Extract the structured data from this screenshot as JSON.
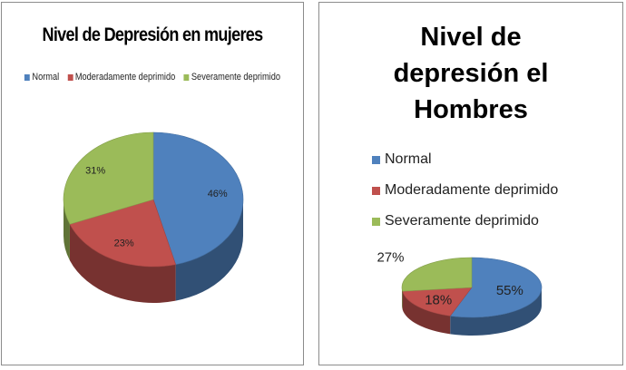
{
  "chart_data": [
    {
      "type": "pie",
      "title": "Nivel de Depresión en mujeres",
      "legend_position": "top",
      "categories": [
        "Normal",
        "Moderadamente deprimido",
        "Severamente deprimido"
      ],
      "values": [
        46,
        23,
        31
      ],
      "value_labels": [
        "46%",
        "23%",
        "31%"
      ],
      "colors": [
        "#4f81bd",
        "#c0504d",
        "#9bbb59"
      ]
    },
    {
      "type": "pie",
      "title": "Nivel de depresión el Hombres",
      "legend_position": "left",
      "categories": [
        "Normal",
        "Moderadamente deprimido",
        "Severamente deprimido"
      ],
      "values": [
        55,
        18,
        27
      ],
      "value_labels": [
        "55%",
        "18%",
        "27%"
      ],
      "colors": [
        "#4f81bd",
        "#c0504d",
        "#9bbb59"
      ]
    }
  ]
}
